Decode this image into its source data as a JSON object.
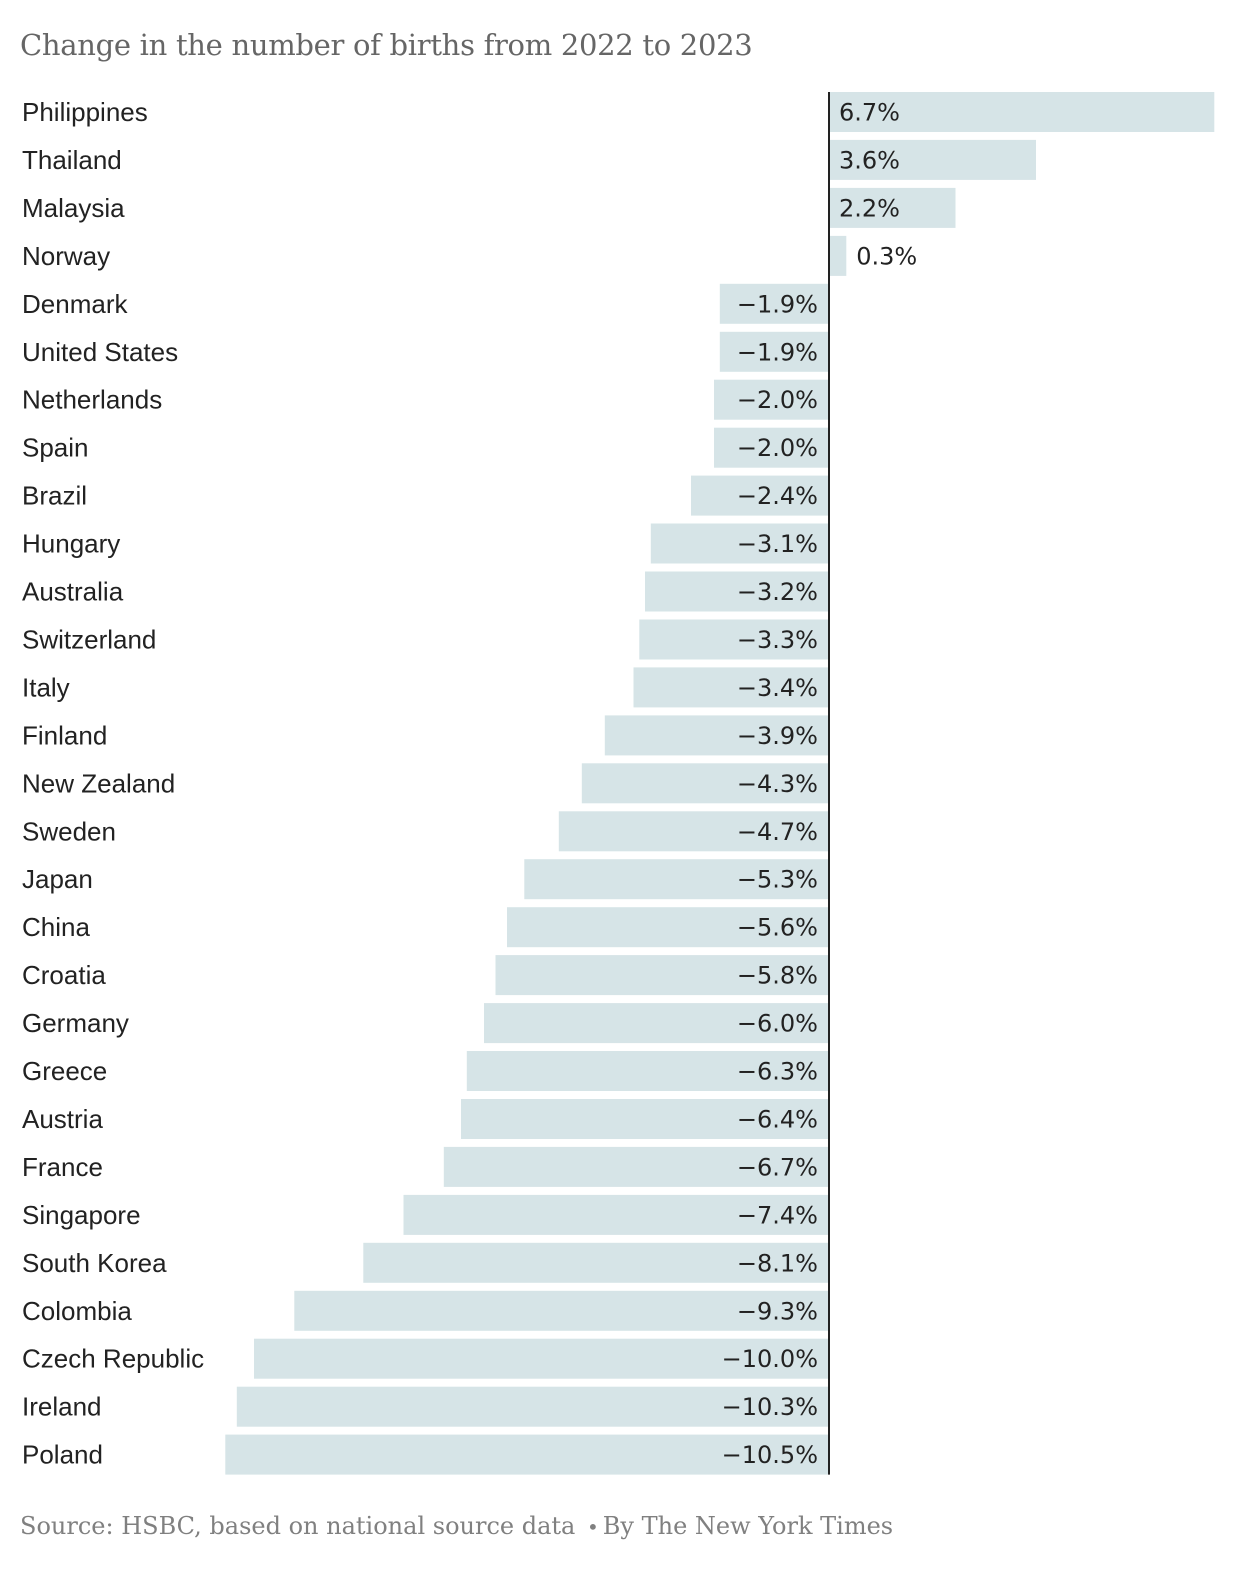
{
  "chart_data": {
    "type": "bar",
    "orientation": "horizontal",
    "title": "Change in the number of births from 2022 to 2023",
    "categories": [
      "Philippines",
      "Thailand",
      "Malaysia",
      "Norway",
      "Denmark",
      "United States",
      "Netherlands",
      "Spain",
      "Brazil",
      "Hungary",
      "Australia",
      "Switzerland",
      "Italy",
      "Finland",
      "New Zealand",
      "Sweden",
      "Japan",
      "China",
      "Croatia",
      "Germany",
      "Greece",
      "Austria",
      "France",
      "Singapore",
      "South Korea",
      "Colombia",
      "Czech Republic",
      "Ireland",
      "Poland"
    ],
    "values": [
      6.7,
      3.6,
      2.2,
      0.3,
      -1.9,
      -1.9,
      -2.0,
      -2.0,
      -2.4,
      -3.1,
      -3.2,
      -3.3,
      -3.4,
      -3.9,
      -4.3,
      -4.7,
      -5.3,
      -5.6,
      -5.8,
      -6.0,
      -6.3,
      -6.4,
      -6.7,
      -7.4,
      -8.1,
      -9.3,
      -10.0,
      -10.3,
      -10.5
    ],
    "value_labels": [
      "6.7%",
      "3.6%",
      "2.2%",
      "0.3%",
      "−1.9%",
      "−1.9%",
      "−2.0%",
      "−2.0%",
      "−2.4%",
      "−3.1%",
      "−3.2%",
      "−3.3%",
      "−3.4%",
      "−3.9%",
      "−4.3%",
      "−4.7%",
      "−5.3%",
      "−5.6%",
      "−5.8%",
      "−6.0%",
      "−6.3%",
      "−6.4%",
      "−6.7%",
      "−7.4%",
      "−8.1%",
      "−9.3%",
      "−10.0%",
      "−10.3%",
      "−10.5%"
    ],
    "unit": "%",
    "xlim": [
      -10.5,
      6.7
    ],
    "grid": false,
    "legend": "none",
    "bar_color": "#d6e4e7",
    "zero_line_color": "#222222"
  },
  "footer": {
    "source_label": "Source:",
    "source_text": "HSBC, based on national source data",
    "separator": "•",
    "byline": "By The New York Times"
  }
}
